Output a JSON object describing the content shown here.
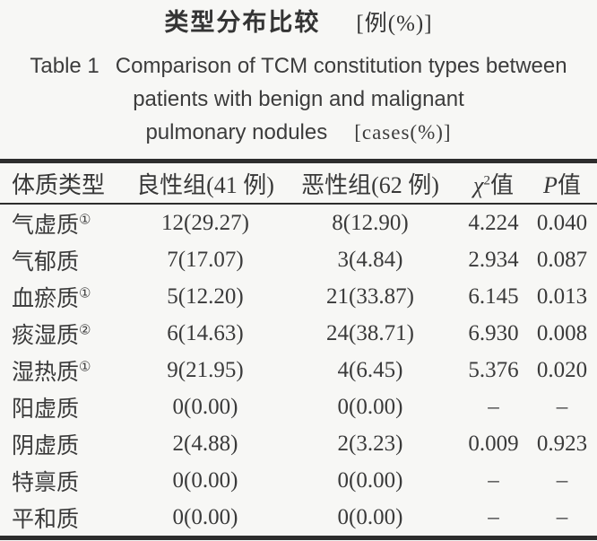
{
  "caption": {
    "zh_title": "类型分布比较",
    "zh_unit": "[例(%)]",
    "en_label": "Table 1",
    "en_line1": "Comparison of TCM constitution types between",
    "en_line2": "patients with benign and malignant",
    "en_line3": "pulmonary nodules",
    "en_unit": "[cases(%)]"
  },
  "table": {
    "header": {
      "type": "体质类型",
      "benign": "良性组(41 例)",
      "malignant": "恶性组(62 例)",
      "chi_symbol": "χ",
      "chi_sup": "2",
      "chi_suffix": "值",
      "p_symbol": "P",
      "p_suffix": "值"
    },
    "rows": [
      {
        "label": "气虚质",
        "marker": "①",
        "benign": "12(29.27)",
        "malignant": "8(12.90)",
        "chi2": "4.224",
        "p": "0.040"
      },
      {
        "label": "气郁质",
        "marker": "",
        "benign": "7(17.07)",
        "malignant": "3(4.84)",
        "chi2": "2.934",
        "p": "0.087"
      },
      {
        "label": "血瘀质",
        "marker": "①",
        "benign": "5(12.20)",
        "malignant": "21(33.87)",
        "chi2": "6.145",
        "p": "0.013"
      },
      {
        "label": "痰湿质",
        "marker": "②",
        "benign": "6(14.63)",
        "malignant": "24(38.71)",
        "chi2": "6.930",
        "p": "0.008"
      },
      {
        "label": "湿热质",
        "marker": "①",
        "benign": "9(21.95)",
        "malignant": "4(6.45)",
        "chi2": "5.376",
        "p": "0.020"
      },
      {
        "label": "阳虚质",
        "marker": "",
        "benign": "0(0.00)",
        "malignant": "0(0.00)",
        "chi2": "–",
        "p": "–"
      },
      {
        "label": "阴虚质",
        "marker": "",
        "benign": "2(4.88)",
        "malignant": "2(3.23)",
        "chi2": "0.009",
        "p": "0.923"
      },
      {
        "label": "特禀质",
        "marker": "",
        "benign": "0(0.00)",
        "malignant": "0(0.00)",
        "chi2": "–",
        "p": "–"
      },
      {
        "label": "平和质",
        "marker": "",
        "benign": "0(0.00)",
        "malignant": "0(0.00)",
        "chi2": "–",
        "p": "–"
      }
    ],
    "colors": {
      "text": "#3a3a3a",
      "rule": "#2d2d2d",
      "background": "#f7f7f5"
    }
  }
}
